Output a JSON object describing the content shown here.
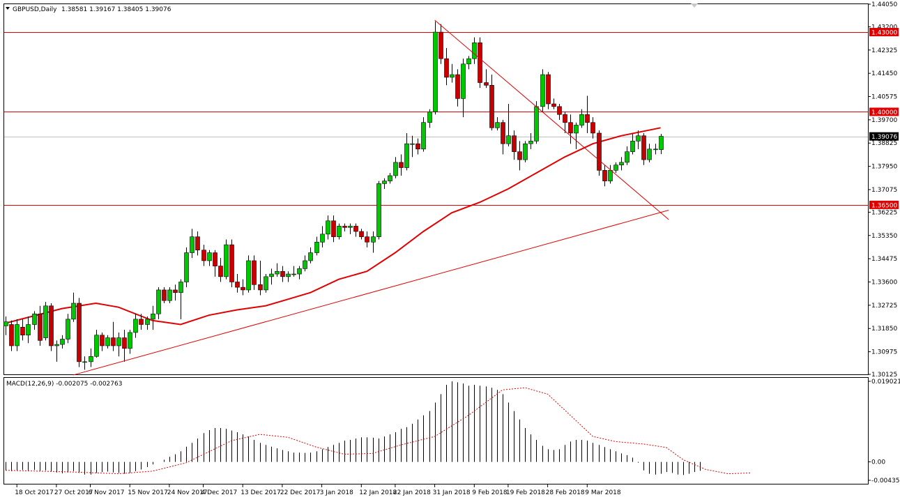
{
  "header": {
    "menu_arrow": "triangle-down-icon",
    "symbol": "GBPUSD,Daily",
    "ohlc": "1.38581 1.39167 1.38405 1.39076"
  },
  "macd": {
    "label": "MACD(12,26,9) -0.002075 -0.002763",
    "scale_labels": [
      "0.019021",
      "0.00",
      "-0.004351"
    ]
  },
  "colors": {
    "bull": "#00c800",
    "bear": "#c80000",
    "lines": "#e00000",
    "grid_frame": "#000000",
    "price_line": "#c0c0c0",
    "label_bg": "#e00000"
  },
  "chart_data": {
    "type": "candlestick",
    "symbol": "GBPUSD",
    "timeframe": "Daily",
    "y_ticks": [
      "1.44050",
      "1.43200",
      "1.42325",
      "1.41450",
      "1.40575",
      "1.39700",
      "1.38825",
      "1.37950",
      "1.37075",
      "1.36225",
      "1.35350",
      "1.34475",
      "1.33600",
      "1.32725",
      "1.31850",
      "1.30975",
      "1.30125"
    ],
    "x_ticks": [
      {
        "date": "2017-10-18",
        "label": "18 Oct 2017"
      },
      {
        "date": "2017-10-27",
        "label": "27 Oct 2017"
      },
      {
        "date": "2017-11-06",
        "label": "6 Nov 2017"
      },
      {
        "date": "2017-11-15",
        "label": "15 Nov 2017"
      },
      {
        "date": "2017-11-24",
        "label": "24 Nov 2017"
      },
      {
        "date": "2017-12-04",
        "label": "4 Dec 2017"
      },
      {
        "date": "2017-12-13",
        "label": "13 Dec 2017"
      },
      {
        "date": "2017-12-22",
        "label": "22 Dec 2017"
      },
      {
        "date": "2018-01-03",
        "label": "3 Jan 2018"
      },
      {
        "date": "2018-01-12",
        "label": "12 Jan 2018"
      },
      {
        "date": "2018-01-22",
        "label": "22 Jan 2018"
      },
      {
        "date": "2018-01-31",
        "label": "31 Jan 2018"
      },
      {
        "date": "2018-02-09",
        "label": "9 Feb 2018"
      },
      {
        "date": "2018-02-19",
        "label": "19 Feb 2018"
      },
      {
        "date": "2018-02-28",
        "label": "28 Feb 2018"
      },
      {
        "date": "2018-03-09",
        "label": "9 Mar 2018"
      }
    ],
    "horizontal_levels": [
      {
        "price": 1.43,
        "label": "1.43000"
      },
      {
        "price": 1.4,
        "label": "1.40000"
      },
      {
        "price": 1.365,
        "label": "1.36500"
      }
    ],
    "current_price": {
      "price": 1.39076,
      "label": "1.39076"
    },
    "candles": [
      [
        "2017-10-16",
        1.3195,
        1.323,
        1.316,
        1.321
      ],
      [
        "2017-10-17",
        1.32,
        1.3215,
        1.31,
        1.312
      ],
      [
        "2017-10-18",
        1.312,
        1.322,
        1.31,
        1.32
      ],
      [
        "2017-10-19",
        1.319,
        1.322,
        1.314,
        1.316
      ],
      [
        "2017-10-20",
        1.316,
        1.323,
        1.313,
        1.32
      ],
      [
        "2017-10-23",
        1.32,
        1.325,
        1.318,
        1.324
      ],
      [
        "2017-10-24",
        1.324,
        1.327,
        1.312,
        1.314
      ],
      [
        "2017-10-25",
        1.315,
        1.3285,
        1.314,
        1.327
      ],
      [
        "2017-10-26",
        1.327,
        1.328,
        1.31,
        1.312
      ],
      [
        "2017-10-27",
        1.312,
        1.314,
        1.306,
        1.3125
      ],
      [
        "2017-10-30",
        1.3125,
        1.316,
        1.311,
        1.3145
      ],
      [
        "2017-10-31",
        1.3145,
        1.324,
        1.313,
        1.322
      ],
      [
        "2017-11-01",
        1.322,
        1.332,
        1.321,
        1.328
      ],
      [
        "2017-11-02",
        1.328,
        1.33,
        1.304,
        1.306
      ],
      [
        "2017-11-03",
        1.306,
        1.308,
        1.303,
        1.306
      ],
      [
        "2017-11-06",
        1.306,
        1.311,
        1.304,
        1.308
      ],
      [
        "2017-11-07",
        1.308,
        1.318,
        1.3075,
        1.316
      ],
      [
        "2017-11-08",
        1.316,
        1.317,
        1.31,
        1.312
      ],
      [
        "2017-11-09",
        1.312,
        1.316,
        1.311,
        1.315
      ],
      [
        "2017-11-10",
        1.315,
        1.321,
        1.31,
        1.312
      ],
      [
        "2017-11-13",
        1.312,
        1.317,
        1.308,
        1.315
      ],
      [
        "2017-11-14",
        1.315,
        1.318,
        1.306,
        1.311
      ],
      [
        "2017-11-15",
        1.311,
        1.318,
        1.309,
        1.317
      ],
      [
        "2017-11-16",
        1.317,
        1.324,
        1.315,
        1.322
      ],
      [
        "2017-11-17",
        1.322,
        1.324,
        1.318,
        1.32
      ],
      [
        "2017-11-20",
        1.32,
        1.323,
        1.318,
        1.322
      ],
      [
        "2017-11-21",
        1.322,
        1.327,
        1.318,
        1.324
      ],
      [
        "2017-11-22",
        1.324,
        1.334,
        1.322,
        1.333
      ],
      [
        "2017-11-23",
        1.333,
        1.334,
        1.328,
        1.329
      ],
      [
        "2017-11-24",
        1.329,
        1.334,
        1.328,
        1.333
      ],
      [
        "2017-11-27",
        1.333,
        1.335,
        1.329,
        1.332
      ],
      [
        "2017-11-28",
        1.332,
        1.337,
        1.322,
        1.336
      ],
      [
        "2017-11-29",
        1.336,
        1.349,
        1.334,
        1.347
      ],
      [
        "2017-11-30",
        1.347,
        1.356,
        1.345,
        1.353
      ],
      [
        "2017-12-01",
        1.353,
        1.355,
        1.346,
        1.348
      ],
      [
        "2017-12-04",
        1.348,
        1.35,
        1.342,
        1.344
      ],
      [
        "2017-12-05",
        1.344,
        1.348,
        1.342,
        1.347
      ],
      [
        "2017-12-06",
        1.347,
        1.348,
        1.338,
        1.342
      ],
      [
        "2017-12-07",
        1.342,
        1.345,
        1.336,
        1.338
      ],
      [
        "2017-12-08",
        1.338,
        1.352,
        1.337,
        1.35
      ],
      [
        "2017-12-11",
        1.35,
        1.352,
        1.334,
        1.336
      ],
      [
        "2017-12-12",
        1.336,
        1.339,
        1.332,
        1.334
      ],
      [
        "2017-12-13",
        1.334,
        1.337,
        1.331,
        1.333
      ],
      [
        "2017-12-14",
        1.333,
        1.346,
        1.332,
        1.344
      ],
      [
        "2017-12-15",
        1.344,
        1.346,
        1.333,
        1.335
      ],
      [
        "2017-12-18",
        1.335,
        1.344,
        1.331,
        1.333
      ],
      [
        "2017-12-19",
        1.333,
        1.339,
        1.332,
        1.338
      ],
      [
        "2017-12-20",
        1.338,
        1.341,
        1.335,
        1.339
      ],
      [
        "2017-12-21",
        1.339,
        1.343,
        1.338,
        1.34
      ],
      [
        "2017-12-22",
        1.34,
        1.342,
        1.336,
        1.338
      ],
      [
        "2017-12-26",
        1.338,
        1.34,
        1.336,
        1.339
      ],
      [
        "2017-12-27",
        1.339,
        1.342,
        1.338,
        1.339
      ],
      [
        "2017-12-28",
        1.339,
        1.342,
        1.337,
        1.341
      ],
      [
        "2017-12-29",
        1.341,
        1.346,
        1.34,
        1.344
      ],
      [
        "2018-01-01",
        1.344,
        1.349,
        1.343,
        1.347
      ],
      [
        "2018-01-02",
        1.347,
        1.353,
        1.346,
        1.351
      ],
      [
        "2018-01-03",
        1.351,
        1.357,
        1.349,
        1.354
      ],
      [
        "2018-01-04",
        1.354,
        1.361,
        1.352,
        1.359
      ],
      [
        "2018-01-05",
        1.359,
        1.361,
        1.351,
        1.353
      ],
      [
        "2018-01-08",
        1.353,
        1.358,
        1.352,
        1.357
      ],
      [
        "2018-01-09",
        1.357,
        1.358,
        1.355,
        1.3565
      ],
      [
        "2018-01-10",
        1.3565,
        1.358,
        1.354,
        1.357
      ],
      [
        "2018-01-11",
        1.357,
        1.358,
        1.353,
        1.355
      ],
      [
        "2018-01-12",
        1.355,
        1.356,
        1.352,
        1.353
      ],
      [
        "2018-01-15",
        1.353,
        1.355,
        1.349,
        1.351
      ],
      [
        "2018-01-16",
        1.351,
        1.355,
        1.347,
        1.353
      ],
      [
        "2018-01-17",
        1.353,
        1.374,
        1.352,
        1.373
      ],
      [
        "2018-01-18",
        1.373,
        1.375,
        1.371,
        1.374
      ],
      [
        "2018-01-19",
        1.374,
        1.377,
        1.373,
        1.376
      ],
      [
        "2018-01-22",
        1.376,
        1.383,
        1.375,
        1.381
      ],
      [
        "2018-01-23",
        1.381,
        1.384,
        1.376,
        1.379
      ],
      [
        "2018-01-24",
        1.379,
        1.392,
        1.378,
        1.388
      ],
      [
        "2018-01-25",
        1.388,
        1.391,
        1.383,
        1.388
      ],
      [
        "2018-01-26",
        1.388,
        1.39,
        1.384,
        1.386
      ],
      [
        "2018-01-29",
        1.386,
        1.398,
        1.385,
        1.396
      ],
      [
        "2018-01-30",
        1.396,
        1.401,
        1.394,
        1.4
      ],
      [
        "2018-01-31",
        1.4,
        1.434,
        1.399,
        1.43
      ],
      [
        "2018-02-01",
        1.43,
        1.433,
        1.418,
        1.42
      ],
      [
        "2018-02-02",
        1.42,
        1.424,
        1.41,
        1.413
      ],
      [
        "2018-02-05",
        1.413,
        1.418,
        1.411,
        1.414
      ],
      [
        "2018-02-06",
        1.414,
        1.416,
        1.402,
        1.405
      ],
      [
        "2018-02-07",
        1.405,
        1.42,
        1.398,
        1.418
      ],
      [
        "2018-02-08",
        1.418,
        1.421,
        1.416,
        1.42
      ],
      [
        "2018-02-09",
        1.42,
        1.428,
        1.418,
        1.426
      ],
      [
        "2018-02-12",
        1.426,
        1.428,
        1.409,
        1.411
      ],
      [
        "2018-02-13",
        1.411,
        1.416,
        1.409,
        1.41
      ],
      [
        "2018-02-14",
        1.41,
        1.414,
        1.393,
        1.394
      ],
      [
        "2018-02-15",
        1.394,
        1.398,
        1.393,
        1.396
      ],
      [
        "2018-02-16",
        1.396,
        1.397,
        1.384,
        1.388
      ],
      [
        "2018-02-19",
        1.388,
        1.403,
        1.387,
        1.391
      ],
      [
        "2018-02-20",
        1.391,
        1.393,
        1.382,
        1.385
      ],
      [
        "2018-02-21",
        1.385,
        1.389,
        1.378,
        1.382
      ],
      [
        "2018-02-22",
        1.382,
        1.389,
        1.381,
        1.388
      ],
      [
        "2018-02-23",
        1.388,
        1.392,
        1.386,
        1.389
      ],
      [
        "2018-02-26",
        1.389,
        1.404,
        1.388,
        1.402
      ],
      [
        "2018-02-27",
        1.402,
        1.416,
        1.4,
        1.414
      ],
      [
        "2018-02-28",
        1.414,
        1.415,
        1.401,
        1.403
      ],
      [
        "2018-03-01",
        1.403,
        1.405,
        1.401,
        1.402
      ],
      [
        "2018-03-02",
        1.402,
        1.403,
        1.397,
        1.399
      ],
      [
        "2018-03-05",
        1.399,
        1.4,
        1.392,
        1.396
      ],
      [
        "2018-03-06",
        1.396,
        1.399,
        1.388,
        1.392
      ],
      [
        "2018-03-07",
        1.392,
        1.396,
        1.386,
        1.395
      ],
      [
        "2018-03-08",
        1.395,
        1.401,
        1.394,
        1.399
      ],
      [
        "2018-03-09",
        1.399,
        1.406,
        1.392,
        1.396
      ],
      [
        "2018-03-12",
        1.396,
        1.398,
        1.39,
        1.392
      ],
      [
        "2018-03-13",
        1.392,
        1.393,
        1.376,
        1.378
      ],
      [
        "2018-03-14",
        1.378,
        1.38,
        1.372,
        1.374
      ],
      [
        "2018-03-15",
        1.374,
        1.38,
        1.373,
        1.378
      ],
      [
        "2018-03-16",
        1.378,
        1.381,
        1.377,
        1.38
      ],
      [
        "2018-03-19",
        1.38,
        1.383,
        1.378,
        1.381
      ],
      [
        "2018-03-20",
        1.381,
        1.387,
        1.38,
        1.385
      ],
      [
        "2018-03-21",
        1.385,
        1.392,
        1.384,
        1.389
      ],
      [
        "2018-03-22",
        1.389,
        1.393,
        1.386,
        1.391
      ],
      [
        "2018-03-23",
        1.391,
        1.392,
        1.38,
        1.382
      ],
      [
        "2018-03-26",
        1.382,
        1.388,
        1.381,
        1.386
      ],
      [
        "2018-03-27",
        1.386,
        1.388,
        1.384,
        1.386
      ],
      [
        "2018-03-28",
        1.3858,
        1.3917,
        1.3841,
        1.3908
      ]
    ],
    "moving_average_points": [
      [
        "2017-10-16",
        1.3205
      ],
      [
        "2017-10-30",
        1.326
      ],
      [
        "2017-11-07",
        1.328
      ],
      [
        "2017-11-13",
        1.3265
      ],
      [
        "2017-11-21",
        1.3215
      ],
      [
        "2017-11-28",
        1.32
      ],
      [
        "2017-12-05",
        1.3235
      ],
      [
        "2017-12-12",
        1.3255
      ],
      [
        "2017-12-19",
        1.327
      ],
      [
        "2017-12-26",
        1.3295
      ],
      [
        "2018-01-01",
        1.332
      ],
      [
        "2018-01-08",
        1.337
      ],
      [
        "2018-01-15",
        1.34
      ],
      [
        "2018-01-22",
        1.347
      ],
      [
        "2018-01-29",
        1.355
      ],
      [
        "2018-02-05",
        1.362
      ],
      [
        "2018-02-12",
        1.366
      ],
      [
        "2018-02-19",
        1.371
      ],
      [
        "2018-02-26",
        1.377
      ],
      [
        "2018-03-05",
        1.383
      ],
      [
        "2018-03-12",
        1.388
      ],
      [
        "2018-03-19",
        1.391
      ],
      [
        "2018-03-28",
        1.394
      ]
    ],
    "trendlines": [
      {
        "name": "resistance",
        "from": [
          "2018-01-31",
          1.4345
        ],
        "to": [
          "2018-03-30",
          1.3595
        ]
      },
      {
        "name": "support",
        "from": [
          "2017-11-01",
          1.301
        ],
        "to": [
          "2018-03-30",
          1.363
        ]
      }
    ],
    "macd_range": [
      -0.004351,
      0.019021
    ],
    "macd_histogram": [
      -0.002,
      -0.0022,
      -0.002,
      -0.0019,
      -0.002,
      -0.0019,
      -0.0021,
      -0.002,
      -0.0022,
      -0.0025,
      -0.0027,
      -0.0025,
      -0.0022,
      -0.0026,
      -0.003,
      -0.003,
      -0.0026,
      -0.0024,
      -0.0023,
      -0.0025,
      -0.0026,
      -0.0028,
      -0.0026,
      -0.0022,
      -0.0018,
      -0.0012,
      -0.0006,
      0.0,
      0.0005,
      0.0012,
      0.0018,
      0.0025,
      0.0036,
      0.0045,
      0.0055,
      0.0068,
      0.0075,
      0.008,
      0.008,
      0.0078,
      0.0074,
      0.007,
      0.0065,
      0.006,
      0.0052,
      0.0045,
      0.004,
      0.0036,
      0.0032,
      0.0028,
      0.0025,
      0.0022,
      0.0022,
      0.0021,
      0.0022,
      0.0025,
      0.003,
      0.0035,
      0.004,
      0.0045,
      0.005,
      0.0052,
      0.0055,
      0.0058,
      0.0058,
      0.0057,
      0.0055,
      0.006,
      0.0065,
      0.007,
      0.0078,
      0.0082,
      0.009,
      0.01,
      0.011,
      0.012,
      0.014,
      0.016,
      0.0182,
      0.019,
      0.0188,
      0.0185,
      0.018,
      0.0182,
      0.018,
      0.0178,
      0.0175,
      0.017,
      0.016,
      0.014,
      0.012,
      0.01,
      0.008,
      0.0065,
      0.0052,
      0.0038,
      0.003,
      0.0028,
      0.003,
      0.004,
      0.0048,
      0.0052,
      0.0052,
      0.005,
      0.0045,
      0.004,
      0.0035,
      0.003,
      0.0025,
      0.002,
      0.0016,
      0.001,
      -0.0002,
      -0.002,
      -0.0028,
      -0.003,
      -0.0028,
      -0.0024,
      -0.0026,
      -0.003,
      -0.0031,
      -0.0028,
      -0.0024,
      -0.0021
    ],
    "macd_signal_points": [
      [
        0,
        -0.002
      ],
      [
        12,
        -0.0024
      ],
      [
        20,
        -0.0028
      ],
      [
        26,
        -0.0022
      ],
      [
        32,
        -0.0002
      ],
      [
        40,
        0.005
      ],
      [
        45,
        0.0065
      ],
      [
        50,
        0.0058
      ],
      [
        55,
        0.0035
      ],
      [
        60,
        0.0018
      ],
      [
        65,
        0.002
      ],
      [
        70,
        0.004
      ],
      [
        76,
        0.006
      ],
      [
        82,
        0.011
      ],
      [
        88,
        0.017
      ],
      [
        92,
        0.0175
      ],
      [
        96,
        0.016
      ],
      [
        100,
        0.011
      ],
      [
        104,
        0.006
      ],
      [
        108,
        0.0048
      ],
      [
        113,
        0.0042
      ],
      [
        117,
        0.0034
      ],
      [
        120,
        0.0005
      ],
      [
        124,
        -0.0018
      ],
      [
        128,
        -0.0028
      ],
      [
        132,
        -0.0026
      ]
    ]
  }
}
